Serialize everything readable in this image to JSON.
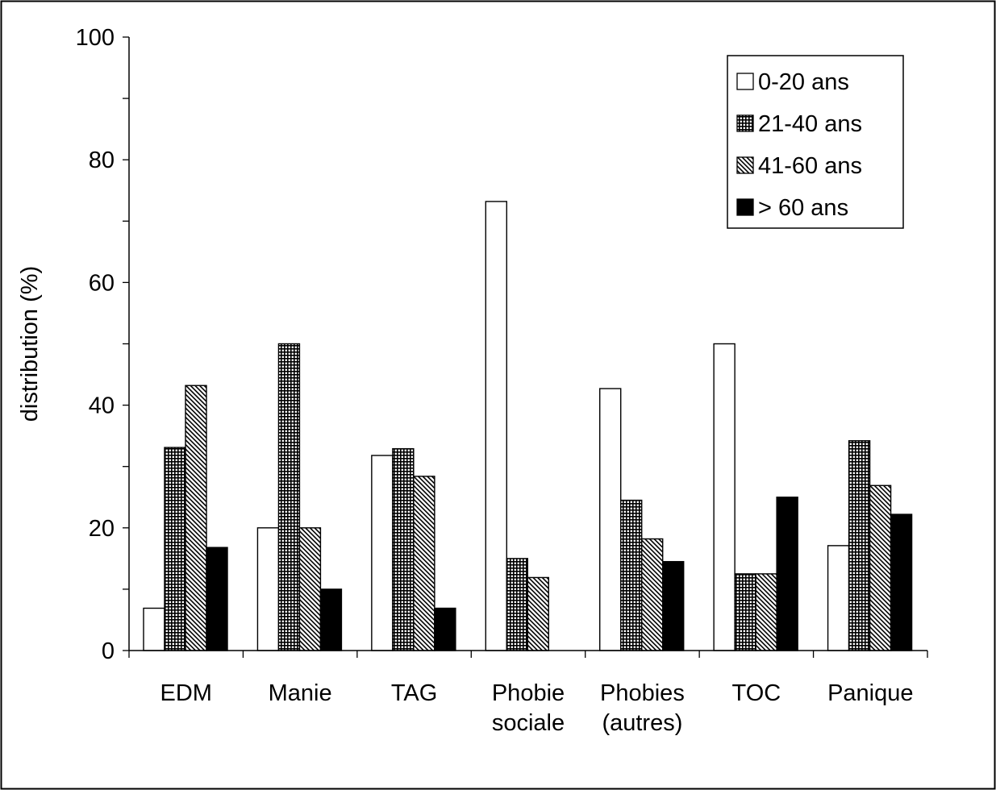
{
  "chart_data": {
    "type": "bar",
    "title": "",
    "xlabel": "",
    "ylabel": "distribution (%)",
    "ylim": [
      0,
      100
    ],
    "yticks": [
      0,
      20,
      40,
      60,
      80,
      100
    ],
    "ytick_labels": [
      "0",
      "20",
      "40",
      "60",
      "80",
      "100"
    ],
    "categories": [
      [
        "EDM"
      ],
      [
        "Manie"
      ],
      [
        "TAG"
      ],
      [
        "Phobie",
        "sociale"
      ],
      [
        "Phobies",
        "(autres)"
      ],
      [
        "TOC"
      ],
      [
        "Panique"
      ]
    ],
    "series": [
      {
        "name": "0-20 ans",
        "fill": "white",
        "values": [
          6.9,
          20,
          31.8,
          73.2,
          42.7,
          50,
          17.1
        ]
      },
      {
        "name": "21-40 ans",
        "fill": "grid",
        "values": [
          33.1,
          50,
          32.9,
          15,
          24.5,
          12.5,
          34.2
        ]
      },
      {
        "name": "41-60 ans",
        "fill": "hatch",
        "values": [
          43.2,
          20,
          28.4,
          11.9,
          18.2,
          12.5,
          26.9
        ]
      },
      {
        "name": "> 60 ans",
        "fill": "black",
        "values": [
          16.8,
          10,
          6.9,
          0,
          14.5,
          25,
          22.2
        ]
      }
    ],
    "legend": {
      "position": "top-right"
    },
    "grid": false
  }
}
